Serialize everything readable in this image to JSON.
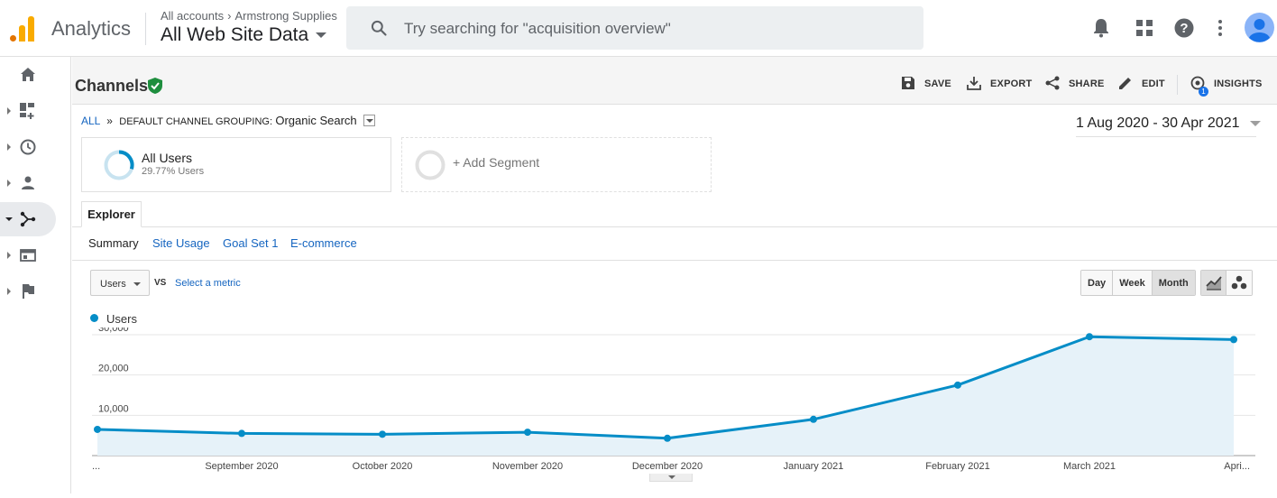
{
  "app": {
    "name": "Analytics"
  },
  "account": {
    "breadcrumb_root": "All accounts",
    "breadcrumb_account": "Armstrong Supplies",
    "property": "All Web Site Data"
  },
  "search": {
    "placeholder": "Try searching for \"acquisition overview\""
  },
  "topbar_icons": [
    "bell-icon",
    "apps-grid-icon",
    "help-icon",
    "more-vert-icon",
    "avatar"
  ],
  "leftnav": [
    {
      "icon": "home-icon"
    },
    {
      "icon": "customization-icon"
    },
    {
      "icon": "realtime-clock-icon"
    },
    {
      "icon": "audience-person-icon"
    },
    {
      "icon": "acquisition-icon",
      "active": true
    },
    {
      "icon": "behavior-icon"
    },
    {
      "icon": "conversions-flag-icon"
    }
  ],
  "report": {
    "title": "Channels",
    "actions": {
      "save": "SAVE",
      "export": "EXPORT",
      "share": "SHARE",
      "edit": "EDIT",
      "insights": "INSIGHTS",
      "insights_count": "1"
    },
    "breadcrumb": {
      "all": "ALL",
      "sep": "»",
      "grouping": "DEFAULT CHANNEL GROUPING:",
      "value": "Organic Search"
    },
    "date_range": "1 Aug 2020 - 30 Apr 2021",
    "segments": [
      {
        "name": "All Users",
        "sub": "29.77% Users",
        "share": 0.2977
      },
      {
        "name": "+ Add Segment"
      }
    ],
    "tab": "Explorer",
    "subtabs": [
      "Summary",
      "Site Usage",
      "Goal Set 1",
      "E-commerce"
    ],
    "metric": "Users",
    "vs": "VS",
    "select_metric": "Select a metric",
    "granularity": [
      "Day",
      "Week",
      "Month"
    ],
    "granularity_selected": "Month",
    "chart_types": [
      "line-chart-icon",
      "motion-chart-icon"
    ]
  },
  "chart_data": {
    "type": "area",
    "series": [
      {
        "name": "Users",
        "color": "#058dc7",
        "values": [
          6500,
          5500,
          5300,
          5800,
          4300,
          9000,
          17500,
          29500,
          28800
        ]
      }
    ],
    "x_labels": [
      "...",
      "September 2020",
      "October 2020",
      "November 2020",
      "December 2020",
      "January 2021",
      "February 2021",
      "March 2021",
      "Apri..."
    ],
    "y_ticks": [
      "30,000",
      "20,000",
      "10,000"
    ],
    "ylim": [
      0,
      30000
    ],
    "grid": true
  }
}
